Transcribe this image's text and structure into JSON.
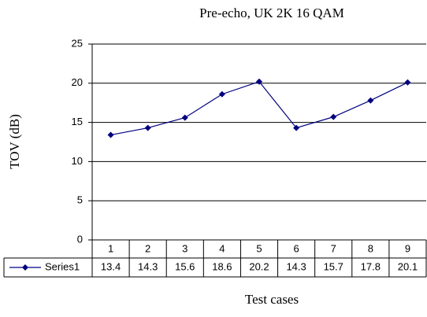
{
  "chart_data": {
    "type": "line",
    "title": "Pre-echo, UK 2K 16 QAM",
    "x_label": "Test cases",
    "y_label": "TOV (dB)",
    "categories": [
      "1",
      "2",
      "3",
      "4",
      "5",
      "6",
      "7",
      "8",
      "9"
    ],
    "series": [
      {
        "name": "Series1",
        "color": "#000080",
        "values": [
          13.4,
          14.3,
          15.6,
          18.6,
          20.2,
          14.3,
          15.7,
          17.8,
          20.1
        ]
      }
    ],
    "ylim": [
      0,
      25
    ],
    "yticks": [
      0,
      5,
      10,
      15,
      20,
      25
    ],
    "grid": true,
    "data_table": true
  }
}
